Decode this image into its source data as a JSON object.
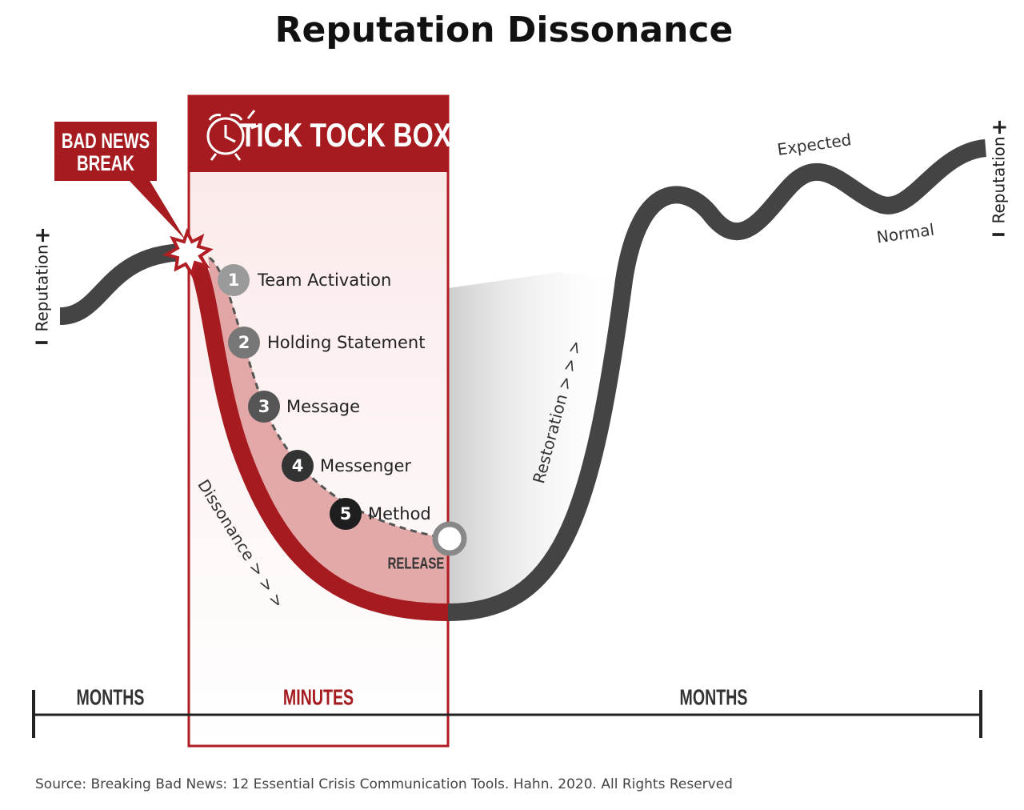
{
  "title": "Reputation Dissonance",
  "bad_news_break": {
    "line1": "BAD NEWS",
    "line2": "BREAK"
  },
  "tick_tock_box": {
    "title": "TICK TOCK BOX"
  },
  "steps": [
    {
      "number": "1",
      "label": "Team Activation"
    },
    {
      "number": "2",
      "label": "Holding Statement"
    },
    {
      "number": "3",
      "label": "Message"
    },
    {
      "number": "4",
      "label": "Messenger"
    },
    {
      "number": "5",
      "label": "Method"
    }
  ],
  "release": "RELEASE",
  "dissonance": "Dissonance > > >",
  "restoration": "Restoration > > >",
  "expected": "Expected",
  "normal": "Normal",
  "reputation_axis": {
    "minus": "I",
    "label": "Reputation",
    "plus": "+"
  },
  "timeline": [
    "MONTHS",
    "MINUTES",
    "MONTHS"
  ],
  "source": "Source: Breaking Bad News: 12 Essential Crisis Communication Tools. Hahn. 2020. All Rights Reserved"
}
